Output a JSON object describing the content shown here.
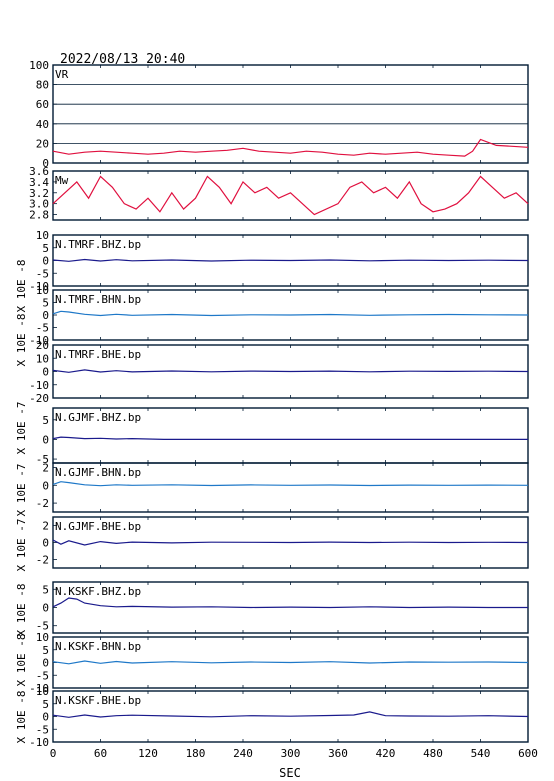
{
  "title": "2022/08/13 20:40",
  "xlabel": "SEC",
  "colors": {
    "vr": "#e0103f",
    "mw": "#e0103f",
    "dark": "#1a1a8c",
    "light": "#1e78c8",
    "frame": "#001a33"
  },
  "chart_data": [
    {
      "type": "line",
      "label": "VR",
      "xlim": [
        0,
        600
      ],
      "ylim": [
        0,
        100
      ],
      "yticks": [
        "100",
        "80",
        "60",
        "40",
        "20",
        "0"
      ],
      "grid": true,
      "series": [
        {
          "x": [
            0,
            20,
            40,
            60,
            80,
            100,
            120,
            140,
            160,
            180,
            200,
            220,
            240,
            260,
            280,
            300,
            320,
            340,
            360,
            380,
            400,
            420,
            440,
            460,
            480,
            500,
            520,
            530,
            540,
            560,
            580,
            600
          ],
          "values": [
            12,
            9,
            11,
            12,
            11,
            10,
            9,
            10,
            12,
            11,
            12,
            13,
            15,
            12,
            11,
            10,
            12,
            11,
            9,
            8,
            10,
            9,
            10,
            11,
            9,
            8,
            7,
            12,
            24,
            18,
            17,
            16
          ]
        }
      ]
    },
    {
      "type": "line",
      "label": "Mw",
      "xlim": [
        0,
        600
      ],
      "ylim": [
        2.7,
        3.6
      ],
      "yticks": [
        "3.6",
        "3.4",
        "3.2",
        "3.0",
        "2.8"
      ],
      "grid": false,
      "series": [
        {
          "x": [
            0,
            15,
            30,
            45,
            60,
            75,
            90,
            105,
            120,
            135,
            150,
            165,
            180,
            195,
            210,
            225,
            240,
            255,
            270,
            285,
            300,
            330,
            360,
            375,
            390,
            405,
            420,
            435,
            450,
            465,
            480,
            495,
            510,
            525,
            540,
            555,
            570,
            585,
            600
          ],
          "values": [
            3.0,
            3.2,
            3.4,
            3.1,
            3.5,
            3.3,
            3.0,
            2.9,
            3.1,
            2.85,
            3.2,
            2.9,
            3.1,
            3.5,
            3.3,
            3.0,
            3.4,
            3.2,
            3.3,
            3.1,
            3.2,
            2.8,
            3.0,
            3.3,
            3.4,
            3.2,
            3.3,
            3.1,
            3.4,
            3.0,
            2.85,
            2.9,
            3.0,
            3.2,
            3.5,
            3.3,
            3.1,
            3.2,
            3.0
          ]
        }
      ]
    },
    {
      "type": "line",
      "label": "N.TMRF.BHZ.bp",
      "xlim": [
        0,
        600
      ],
      "ylim": [
        -10,
        10
      ],
      "yticks": [
        "10",
        "5",
        "0",
        "-5",
        "-10"
      ],
      "series": [
        {
          "x": [
            0,
            20,
            40,
            60,
            80,
            100,
            150,
            200,
            250,
            300,
            350,
            400,
            450,
            500,
            550,
            600
          ],
          "values": [
            0.2,
            -0.3,
            0.4,
            -0.2,
            0.3,
            -0.1,
            0.2,
            -0.2,
            0.1,
            0,
            0.2,
            -0.1,
            0.1,
            0,
            0.1,
            0
          ]
        }
      ]
    },
    {
      "type": "line",
      "label": "N.TMRF.BHN.bp",
      "xlim": [
        0,
        600
      ],
      "ylim": [
        -10,
        10
      ],
      "yticks": [
        "10",
        "5",
        "0",
        "-5",
        "-10"
      ],
      "series": [
        {
          "x": [
            0,
            10,
            20,
            40,
            60,
            80,
            100,
            150,
            200,
            250,
            300,
            350,
            400,
            450,
            500,
            550,
            600
          ],
          "values": [
            0.5,
            1.5,
            1.2,
            0.3,
            -0.2,
            0.3,
            -0.1,
            0.2,
            -0.2,
            0.1,
            0,
            0.2,
            -0.1,
            0.1,
            0.2,
            0.1,
            0
          ]
        }
      ]
    },
    {
      "type": "line",
      "label": "N.TMRF.BHE.bp",
      "xlim": [
        0,
        600
      ],
      "ylim": [
        -20,
        20
      ],
      "yticks": [
        "20",
        "10",
        "0",
        "-10",
        "-20"
      ],
      "series": [
        {
          "x": [
            0,
            20,
            40,
            60,
            80,
            100,
            150,
            200,
            250,
            300,
            350,
            400,
            450,
            500,
            550,
            600
          ],
          "values": [
            0.8,
            -0.6,
            1.2,
            -0.4,
            0.6,
            -0.3,
            0.4,
            -0.2,
            0.3,
            0,
            0.3,
            -0.2,
            0.2,
            0.1,
            0.2,
            0
          ]
        }
      ]
    },
    {
      "type": "line",
      "label": "N.GJMF.BHZ.bp",
      "xlim": [
        0,
        600
      ],
      "ylim": [
        -6,
        8
      ],
      "yticks": [
        "5",
        "0",
        "-5"
      ],
      "series": [
        {
          "x": [
            0,
            10,
            20,
            40,
            60,
            80,
            100,
            140,
            200,
            300,
            400,
            500,
            600
          ],
          "values": [
            0.2,
            0.6,
            0.5,
            0.2,
            0.3,
            0.1,
            0.2,
            0,
            0,
            0,
            0,
            0,
            0
          ]
        }
      ]
    },
    {
      "type": "line",
      "label": "N.GJMF.BHN.bp",
      "xlim": [
        0,
        600
      ],
      "ylim": [
        -3,
        2.5
      ],
      "yticks": [
        "2",
        "0",
        "-2"
      ],
      "series": [
        {
          "x": [
            0,
            10,
            20,
            40,
            60,
            80,
            100,
            150,
            200,
            250,
            300,
            350,
            400,
            450,
            500,
            550,
            600
          ],
          "values": [
            0.1,
            0.4,
            0.3,
            0.05,
            -0.05,
            0.05,
            0,
            0.05,
            -0.03,
            0.04,
            0,
            0.03,
            -0.02,
            0.02,
            0,
            0.02,
            0
          ]
        }
      ]
    },
    {
      "type": "line",
      "label": "N.GJMF.BHE.bp",
      "xlim": [
        0,
        600
      ],
      "ylim": [
        -3,
        3
      ],
      "yticks": [
        "2",
        "0",
        "-2"
      ],
      "series": [
        {
          "x": [
            0,
            10,
            20,
            40,
            60,
            80,
            100,
            150,
            200,
            250,
            300,
            350,
            400,
            450,
            500,
            550,
            600
          ],
          "values": [
            0.3,
            -0.2,
            0.2,
            -0.3,
            0.1,
            -0.1,
            0.05,
            -0.05,
            0.03,
            0.02,
            0,
            0.05,
            0,
            0.03,
            0,
            0.02,
            0
          ]
        }
      ]
    },
    {
      "type": "line",
      "label": "N.KSKF.BHZ.bp",
      "xlim": [
        0,
        600
      ],
      "ylim": [
        -7,
        7
      ],
      "yticks": [
        "5",
        "0",
        "-5"
      ],
      "series": [
        {
          "x": [
            0,
            10,
            20,
            30,
            40,
            60,
            80,
            100,
            150,
            200,
            250,
            300,
            350,
            400,
            450,
            500,
            550,
            600
          ],
          "values": [
            0.2,
            1.2,
            2.6,
            2.3,
            1.2,
            0.5,
            0.2,
            0.3,
            0.1,
            0.2,
            0,
            0.1,
            0,
            0.2,
            0,
            0.1,
            0,
            0
          ]
        }
      ]
    },
    {
      "type": "line",
      "label": "N.KSKF.BHN.bp",
      "xlim": [
        0,
        600
      ],
      "ylim": [
        -10,
        10
      ],
      "yticks": [
        "10",
        "5",
        "0",
        "-5",
        "-10"
      ],
      "series": [
        {
          "x": [
            0,
            20,
            40,
            60,
            80,
            100,
            150,
            200,
            250,
            300,
            350,
            400,
            450,
            500,
            550,
            600
          ],
          "values": [
            0.3,
            -0.5,
            0.6,
            -0.3,
            0.4,
            -0.2,
            0.3,
            -0.1,
            0.2,
            0,
            0.3,
            -0.2,
            0.2,
            0.1,
            0.2,
            0
          ]
        }
      ]
    },
    {
      "type": "line",
      "label": "N.KSKF.BHE.bp",
      "xlim": [
        0,
        600
      ],
      "ylim": [
        -10,
        10
      ],
      "yticks": [
        "10",
        "5",
        "0",
        "-5",
        "-10"
      ],
      "series": [
        {
          "x": [
            0,
            20,
            40,
            60,
            80,
            100,
            150,
            200,
            250,
            300,
            350,
            380,
            400,
            420,
            450,
            500,
            550,
            600
          ],
          "values": [
            0.5,
            -0.3,
            0.6,
            -0.2,
            0.3,
            0.5,
            0.2,
            -0.1,
            0.3,
            0.1,
            0.4,
            0.6,
            1.8,
            0.3,
            0.2,
            0.1,
            0.3,
            0
          ]
        }
      ]
    }
  ],
  "scale_labels": [
    "X 10E -8",
    "X 10E -8",
    "X 10E -7",
    "X 10E -7",
    "X 10E -7",
    "X 10E -8",
    "X 10E -8",
    "X 10E -8"
  ],
  "xticks": [
    "0",
    "60",
    "120",
    "180",
    "240",
    "300",
    "360",
    "420",
    "480",
    "540",
    "600"
  ]
}
